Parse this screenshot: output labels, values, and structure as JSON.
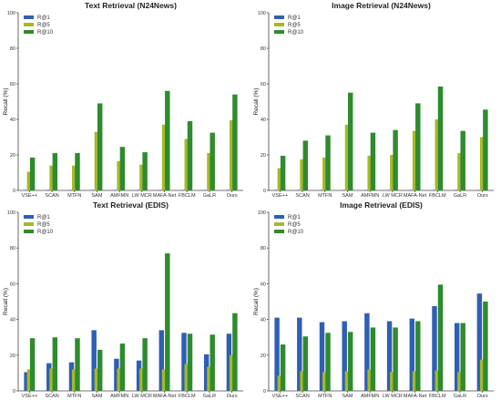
{
  "colors": {
    "R@1": "#2f5fb3",
    "R@5": "#a6b82a",
    "R@10": "#2e8b2e"
  },
  "chart_data": [
    {
      "type": "bar",
      "title": "Text Retrieval (N24News)",
      "ylabel": "Recall (%)",
      "ylim": [
        0,
        100
      ],
      "yticks": [
        0,
        20,
        40,
        60,
        80,
        100
      ],
      "legend_position": "top-left",
      "categories": [
        "VSE++",
        "SCAN",
        "MTFN",
        "SAM",
        "AMFMN",
        "LW MCR",
        "MAFA-Net",
        "FBCLM",
        "GaLR",
        "Ours"
      ],
      "series": [
        {
          "name": "R@1",
          "values": [
            0.3,
            0.3,
            0.3,
            0.3,
            0.3,
            0.3,
            0.3,
            0.3,
            0.3,
            0.3
          ]
        },
        {
          "name": "R@5",
          "values": [
            10.5,
            14,
            14,
            33,
            16.5,
            14.5,
            37,
            29,
            21,
            39.5
          ]
        },
        {
          "name": "R@10",
          "values": [
            18.5,
            21,
            21,
            49,
            24.5,
            21.5,
            56,
            39,
            32.5,
            54
          ]
        }
      ]
    },
    {
      "type": "bar",
      "title": "Image Retrieval (N24News)",
      "ylabel": "Recall (%)",
      "ylim": [
        0,
        100
      ],
      "yticks": [
        0,
        20,
        40,
        60,
        80,
        100
      ],
      "legend_position": "top-left",
      "categories": [
        "VSE++",
        "SCAN",
        "MTFN",
        "SAM",
        "AMFMN",
        "LW MCR",
        "MAFA-Net",
        "FBCLM",
        "GaLR",
        "Ours"
      ],
      "series": [
        {
          "name": "R@1",
          "values": [
            0.3,
            0.3,
            0.3,
            0.3,
            0.3,
            0.3,
            0.3,
            0.3,
            0.3,
            0.3
          ]
        },
        {
          "name": "R@5",
          "values": [
            12.5,
            17.5,
            18.5,
            37,
            19.5,
            20,
            33.5,
            40,
            21,
            30
          ]
        },
        {
          "name": "R@10",
          "values": [
            19.5,
            28,
            31,
            55,
            32.5,
            34,
            49,
            58.5,
            33.5,
            45.5
          ]
        }
      ]
    },
    {
      "type": "bar",
      "title": "Text Retrieval (EDIS)",
      "ylabel": "Recall (%)",
      "ylim": [
        0,
        100
      ],
      "yticks": [
        0,
        20,
        40,
        60,
        80,
        100
      ],
      "legend_position": "top-left",
      "categories": [
        "VSE++",
        "SCAN",
        "MTFN",
        "SAM",
        "AMFMN",
        "LW MCR",
        "MAFA-Net",
        "FBCLM",
        "GaLR",
        "Ours"
      ],
      "series": [
        {
          "name": "R@1",
          "values": [
            10.5,
            15.5,
            16,
            34,
            18,
            17,
            34,
            32.5,
            20.5,
            32
          ]
        },
        {
          "name": "R@5",
          "values": [
            12,
            12.5,
            12,
            12.5,
            12.5,
            12.5,
            12,
            15,
            13.5,
            20
          ]
        },
        {
          "name": "R@10",
          "values": [
            29.5,
            30,
            29.5,
            23,
            26.5,
            29.5,
            77,
            32,
            31.5,
            43.5
          ]
        }
      ]
    },
    {
      "type": "bar",
      "title": "Image Retrieval (EDIS)",
      "ylabel": "Recall (%)",
      "ylim": [
        0,
        100
      ],
      "yticks": [
        0,
        20,
        40,
        60,
        80,
        100
      ],
      "legend_position": "top-left",
      "categories": [
        "VSE++",
        "SCAN",
        "MTFN",
        "SAM",
        "AMFMN",
        "LW MCR",
        "MAFA-Net",
        "FBCLM",
        "GaLR",
        "Ours"
      ],
      "series": [
        {
          "name": "R@1",
          "values": [
            41,
            41,
            38.5,
            39,
            43.5,
            39,
            40.5,
            47.5,
            38,
            54.5
          ]
        },
        {
          "name": "R@5",
          "values": [
            8.5,
            11,
            10.5,
            11,
            12,
            10.5,
            11,
            11.5,
            10.5,
            17.5
          ]
        },
        {
          "name": "R@10",
          "values": [
            26,
            30.5,
            32.5,
            33,
            35.5,
            35.5,
            39,
            59.5,
            38,
            50
          ]
        }
      ]
    }
  ]
}
